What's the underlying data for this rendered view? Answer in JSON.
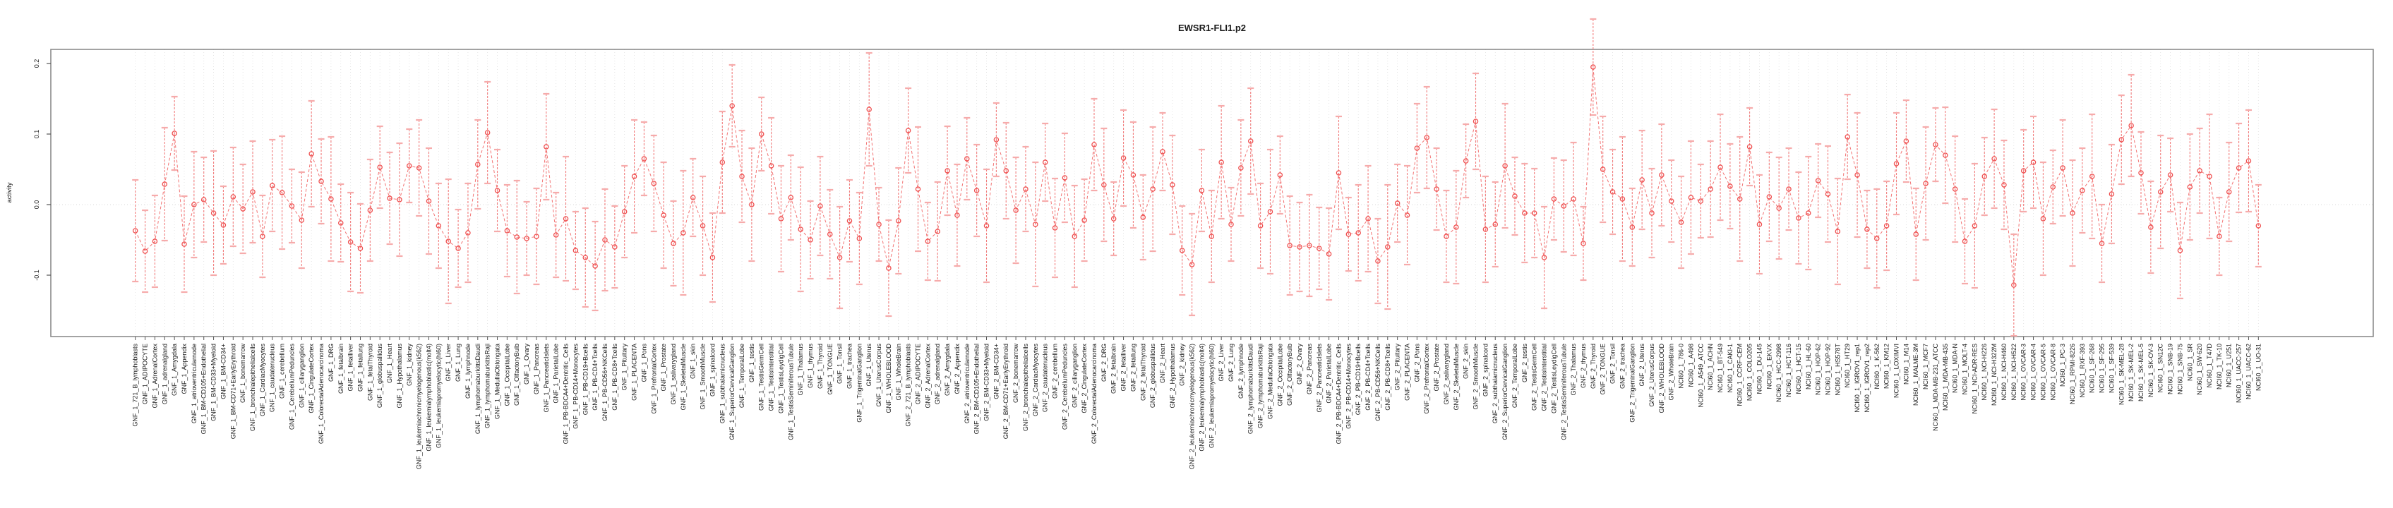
{
  "title": "EWSR1-FLI1.p2",
  "axes": {
    "ylabel": "activity",
    "ytick_labels": [
      "0.2",
      "0.1",
      "0.0",
      "-0.1"
    ],
    "ytick_values": [
      0.2,
      0.1,
      0.0,
      -0.1
    ]
  },
  "colors": {
    "marker": "#ef4e4e",
    "line": "#f27373",
    "errorbar": "#f27d7d",
    "errorbar_cap": "#f6abab",
    "frame": "#8c8c8c",
    "grid": "#dedede",
    "zero_line": "#cccccc",
    "tick": "#555555",
    "text": "#1a1a1a"
  },
  "chart_data": {
    "type": "line",
    "title": "EWSR1-FLI1.p2",
    "xlabel": "",
    "ylabel": "activity",
    "ylim": [
      -0.187,
      0.22
    ],
    "yticks": [
      -0.1,
      0.0,
      0.1,
      0.2
    ],
    "grid": "dotted vertical gridline per category; dotted horizontal line at y=0",
    "legend": "none",
    "marker": "open-circle",
    "error_bars": true,
    "categories": [
      "GNF_1_721_B_lymphoblasts",
      "GNF_1_ADIPOCYTE",
      "GNF_1_AdrenalCortex",
      "GNF_1_adrenalgland",
      "GNF_1_Amygdala",
      "GNF_1_Appendix",
      "GNF_1_atrioventricularnode",
      "GNF_1_BM-CD105+Endothelial",
      "GNF_1_BM-CD33+Myeloid",
      "GNF_1_BM-CD34+",
      "GNF_1_BM-CD71+EarlyErythroid",
      "GNF_1_bonemarrow",
      "GNF_1_bronchialepithelialcells",
      "GNF_1_CardiacMyocytes",
      "GNF_1_caudatenucleus",
      "GNF_1_cerebellum",
      "GNF_1_CerebellumPeduncles",
      "GNF_1_ciliaryganglion",
      "GNF_1_CingulateCortex",
      "GNF_1_ColorectalAdenocarcinoma",
      "GNF_1_DRG",
      "GNF_1_fetalbrain",
      "GNF_1_fetalliver",
      "GNF_1_fetallung",
      "GNF_1_fetalThyroid",
      "GNF_1_globuspallidus",
      "GNF_1_Heart",
      "GNF_1_Hypothalamus",
      "GNF_1_kidney",
      "GNF_1_leukemiachronicmyelogenous(k562)",
      "GNF_1_leukemialymphoblastic(molt4)",
      "GNF_1_leukemiapromyelocytic(hl60)",
      "GNF_1_Liver",
      "GNF_1_Lung",
      "GNF_1_lymphnode",
      "GNF_1_lymphomaburkittsDaudi",
      "GNF_1_lymphomaburkittsRaji",
      "GNF_1_MedullaOblongata",
      "GNF_1_OccipitalLobe",
      "GNF_1_OlfactoryBulb",
      "GNF_1_Ovary",
      "GNF_1_Pancreas",
      "GNF_1_PancreaticIslets",
      "GNF_1_ParietalLobe",
      "GNF_1_PB-BDCA4+Dentritic_Cells",
      "GNF_1_PB-CD14+Monocytes",
      "GNF_1_PB-CD19+Bcells",
      "GNF_1_PB-CD4+Tcells",
      "GNF_1_PB-CD56+NKCells",
      "GNF_1_PB-CD8+Tcells",
      "GNF_1_Pituitary",
      "GNF_1_PLACENTA",
      "GNF_1_Pons",
      "GNF_1_PrefrontalCortex",
      "GNF_1_Prostate",
      "GNF_1_salivarygland",
      "GNF_1_SkeletalMuscle",
      "GNF_1_skin",
      "GNF_1_SmoothMuscle",
      "GNF_1_spinalcord",
      "GNF_1_subthalamicnucleus",
      "GNF_1_SuperiorCervicalGanglion",
      "GNF_1_TemporalLobe",
      "GNF_1_testis",
      "GNF_1_TestisGermCell",
      "GNF_1_TestisInterstitial",
      "GNF_1_TestisLeydigCell",
      "GNF_1_TestisSeminiferousTubule",
      "GNF_1_Thalamus",
      "GNF_1_thymus",
      "GNF_1_Thyroid",
      "GNF_1_TONGUE",
      "GNF_1_Tonsil",
      "GNF_1_trachea",
      "GNF_1_TrigeminalGanglion",
      "GNF_1_Uterus",
      "GNF_1_UterusCorpus",
      "GNF_1_WHOLEBLOOD",
      "GNF_1_WholeBrain",
      "GNF_2_721_B_lymphoblasts",
      "GNF_2_ADIPOCYTE",
      "GNF_2_AdrenalCortex",
      "GNF_2_adrenalgland",
      "GNF_2_Amygdala",
      "GNF_2_Appendix",
      "GNF_2_atrioventricularnode",
      "GNF_2_BM-CD105+Endothelial",
      "GNF_2_BM-CD33+Myeloid",
      "GNF_2_BM-CD34+",
      "GNF_2_BM-CD71+EarlyErythroid",
      "GNF_2_bonemarrow",
      "GNF_2_bronchialepithelialcells",
      "GNF_2_CardiacMyocytes",
      "GNF_2_caudatenucleus",
      "GNF_2_cerebellum",
      "GNF_2_CerebellumPeduncles",
      "GNF_2_ciliaryganglion",
      "GNF_2_CingulateCortex",
      "GNF_2_ColorectalAdenocarcinoma",
      "GNF_2_DRG",
      "GNF_2_fetalbrain",
      "GNF_2_fetalliver",
      "GNF_2_fetallung",
      "GNF_2_fetalThyroid",
      "GNF_2_globuspallidus",
      "GNF_2_Heart",
      "GNF_2_Hypothalamus",
      "GNF_2_kidney",
      "GNF_2_leukemiachronicmyelogenous(k562)",
      "GNF_2_leukemialymphoblastic(molt4)",
      "GNF_2_leukemiapromyelocytic(hl60)",
      "GNF_2_Liver",
      "GNF_2_Lung",
      "GNF_2_lymphnode",
      "GNF_2_lymphomaburkittsDaudi",
      "GNF_2_lymphomaburkittsRaji",
      "GNF_2_MedullaOblongata",
      "GNF_2_OccipitalLobe",
      "GNF_2_OlfactoryBulb",
      "GNF_2_Ovary",
      "GNF_2_Pancreas",
      "GNF_2_PancreaticIslets",
      "GNF_2_ParietalLobe",
      "GNF_2_PB-BDCA4+Dentritic_Cells",
      "GNF_2_PB-CD14+Monocytes",
      "GNF_2_PB-CD19+Bcells",
      "GNF_2_PB-CD4+Tcells",
      "GNF_2_PB-CD56+NKCells",
      "GNF_2_PB-CD8+Tcells",
      "GNF_2_Pituitary",
      "GNF_2_PLACENTA",
      "GNF_2_Pons",
      "GNF_2_PrefrontalCortex",
      "GNF_2_Prostate",
      "GNF_2_salivarygland",
      "GNF_2_SkeletalMuscle",
      "GNF_2_skin",
      "GNF_2_SmoothMuscle",
      "GNF_2_spinalcord",
      "GNF_2_subthalamicnucleus",
      "GNF_2_SuperiorCervicalGanglion",
      "GNF_2_TemporalLobe",
      "GNF_2_testis",
      "GNF_2_TestisGermCell",
      "GNF_2_TestisInterstitial",
      "GNF_2_TestisLeydigCell",
      "GNF_2_TestisSeminiferousTubule",
      "GNF_2_Thalamus",
      "GNF_2_thymus",
      "GNF_2_Thyroid",
      "GNF_2_TONGUE",
      "GNF_2_Tonsil",
      "GNF_2_trachea",
      "GNF_2_TrigeminalGanglion",
      "GNF_2_Uterus",
      "GNF_2_UterusCorpus",
      "GNF_2_WHOLEBLOOD",
      "GNF_2_WholeBrain",
      "NCI60_1_786-0",
      "NCI60_1_A498",
      "NCI60_1_A549_ATCC",
      "NCI60_1_ACHN",
      "NCI60_1_BT-549",
      "NCI60_1_CAKI-1",
      "NCI60_1_CCRF-CEM",
      "NCI60_1_COLO205",
      "NCI60_1_DU-145",
      "NCI60_1_EKVX",
      "NCI60_1_HCC-2998",
      "NCI60_1_HCT-116",
      "NCI60_1_HCT-15",
      "NCI60_1_HL-60",
      "NCI60_1_HOP-62",
      "NCI60_1_HOP-92",
      "NCI60_1_HS578T",
      "NCI60_1_HT29",
      "NCI60_1_IGROV1_rep1",
      "NCI60_1_IGROV1_rep2",
      "NCI60_1_K-562",
      "NCI60_1_KM12",
      "NCI60_1_LOXIMVI",
      "NCI60_1_M14",
      "NCI60_1_MALME-3M",
      "NCI60_1_MCF7",
      "NCI60_1_MDA-MB-231_ATCC",
      "NCI60_1_MDA-MB-435",
      "NCI60_1_MDA-N",
      "NCI60_1_MOLT-4",
      "NCI60_1_NCI-ADR-RES",
      "NCI60_1_NCI-H226",
      "NCI60_1_NCI-H322M",
      "NCI60_1_NCI-H460",
      "NCI60_1_NCI-H522",
      "NCI60_1_OVCAR-3",
      "NCI60_1_OVCAR-4",
      "NCI60_1_OVCAR-5",
      "NCI60_1_OVCAR-8",
      "NCI60_1_PC-3",
      "NCI60_1_RPMI-8226",
      "NCI60_1_RXF-393",
      "NCI60_1_SF-268",
      "NCI60_1_SF-295",
      "NCI60_1_SF-539",
      "NCI60_1_SK-MEL-28",
      "NCI60_1_SK-MEL-2",
      "NCI60_1_SK-MEL-5",
      "NCI60_1_SK-OV-3",
      "NCI60_1_SN12C",
      "NCI60_1_SNB-19",
      "NCI60_1_SNB-75",
      "NCI60_1_SR",
      "NCI60_1_SW-620",
      "NCI60_1_T47D",
      "NCI60_1_TK-10",
      "NCI60_1_U251",
      "NCI60_1_UACC-257",
      "NCI60_1_UACC-62",
      "NCI60_1_UO-31"
    ],
    "values": [
      -0.037,
      -0.066,
      -0.052,
      0.029,
      0.101,
      -0.056,
      0.0,
      0.007,
      -0.012,
      -0.029,
      0.011,
      -0.006,
      0.018,
      -0.045,
      0.027,
      0.017,
      -0.002,
      -0.022,
      0.072,
      0.033,
      0.008,
      -0.026,
      -0.053,
      -0.062,
      -0.008,
      0.053,
      0.009,
      0.007,
      0.055,
      0.052,
      0.005,
      -0.03,
      -0.052,
      -0.062,
      -0.04,
      0.057,
      0.102,
      0.02,
      -0.037,
      -0.046,
      -0.048,
      -0.045,
      0.082,
      -0.043,
      -0.02,
      -0.065,
      -0.075,
      -0.087,
      -0.05,
      -0.06,
      -0.01,
      0.04,
      0.065,
      0.03,
      -0.015,
      -0.055,
      -0.04,
      0.01,
      -0.03,
      -0.075,
      0.06,
      0.14,
      0.04,
      0.0,
      0.1,
      0.055,
      -0.02,
      0.01,
      -0.035,
      -0.05,
      -0.002,
      -0.042,
      -0.075,
      -0.023,
      -0.048,
      0.135,
      -0.028,
      -0.09,
      -0.023,
      0.105,
      0.022,
      -0.052,
      -0.038,
      0.048,
      -0.015,
      0.065,
      0.02,
      -0.03,
      0.092,
      0.048,
      -0.008,
      0.022,
      -0.028,
      0.06,
      -0.033,
      0.038,
      -0.045,
      -0.022,
      0.085,
      0.028,
      -0.02,
      0.066,
      0.042,
      -0.018,
      0.022,
      0.075,
      0.028,
      -0.065,
      -0.085,
      0.02,
      -0.045,
      0.06,
      -0.028,
      0.052,
      0.09,
      -0.03,
      -0.01,
      0.042,
      -0.058,
      -0.06,
      -0.058,
      -0.062,
      -0.07,
      0.045,
      -0.042,
      -0.04,
      -0.02,
      -0.08,
      -0.06,
      0.002,
      -0.015,
      0.08,
      0.095,
      0.022,
      -0.045,
      -0.032,
      0.062,
      0.118,
      -0.035,
      -0.028,
      0.055,
      0.012,
      -0.012,
      -0.012,
      -0.075,
      0.008,
      -0.002,
      0.008,
      -0.055,
      0.195,
      0.05,
      0.018,
      0.008,
      -0.032,
      0.035,
      -0.012,
      0.042,
      0.005,
      -0.025,
      0.01,
      0.005,
      0.022,
      0.053,
      0.026,
      0.008,
      0.082,
      -0.028,
      0.011,
      -0.005,
      0.022,
      -0.019,
      -0.012,
      0.034,
      0.015,
      -0.038,
      0.096,
      0.042,
      -0.035,
      -0.048,
      -0.03,
      0.058,
      0.09,
      -0.042,
      0.03,
      0.085,
      0.07,
      0.022,
      -0.052,
      -0.03,
      0.04,
      0.065,
      0.028,
      -0.114,
      0.048,
      0.06,
      -0.02,
      0.025,
      0.052,
      -0.012,
      0.02,
      0.04,
      -0.055,
      0.015,
      0.092,
      0.112,
      0.045,
      -0.032,
      0.018,
      0.042,
      -0.065,
      0.025,
      0.048,
      0.04,
      -0.045,
      0.018,
      0.052,
      0.062,
      -0.03
    ],
    "errors": [
      0.072,
      0.058,
      0.065,
      0.08,
      0.052,
      0.068,
      0.075,
      0.06,
      0.088,
      0.055,
      0.07,
      0.063,
      0.072,
      0.058,
      0.065,
      0.08,
      0.052,
      0.068,
      0.075,
      0.06,
      0.088,
      0.055,
      0.07,
      0.063,
      0.072,
      0.058,
      0.065,
      0.08,
      0.052,
      0.068,
      0.075,
      0.06,
      0.088,
      0.055,
      0.07,
      0.063,
      0.072,
      0.058,
      0.065,
      0.08,
      0.052,
      0.068,
      0.075,
      0.06,
      0.088,
      0.055,
      0.07,
      0.063,
      0.072,
      0.058,
      0.065,
      0.08,
      0.052,
      0.068,
      0.075,
      0.06,
      0.088,
      0.055,
      0.07,
      0.063,
      0.072,
      0.058,
      0.065,
      0.08,
      0.052,
      0.068,
      0.075,
      0.06,
      0.088,
      0.055,
      0.07,
      0.063,
      0.072,
      0.058,
      0.065,
      0.08,
      0.052,
      0.068,
      0.075,
      0.06,
      0.088,
      0.055,
      0.07,
      0.063,
      0.072,
      0.058,
      0.065,
      0.08,
      0.052,
      0.068,
      0.075,
      0.06,
      0.088,
      0.055,
      0.07,
      0.063,
      0.072,
      0.058,
      0.065,
      0.08,
      0.052,
      0.068,
      0.075,
      0.06,
      0.088,
      0.055,
      0.07,
      0.063,
      0.072,
      0.058,
      0.065,
      0.08,
      0.052,
      0.068,
      0.075,
      0.06,
      0.088,
      0.055,
      0.07,
      0.063,
      0.072,
      0.058,
      0.065,
      0.08,
      0.052,
      0.068,
      0.075,
      0.06,
      0.088,
      0.055,
      0.07,
      0.063,
      0.072,
      0.058,
      0.065,
      0.08,
      0.052,
      0.068,
      0.075,
      0.06,
      0.088,
      0.055,
      0.07,
      0.063,
      0.072,
      0.058,
      0.065,
      0.08,
      0.052,
      0.068,
      0.075,
      0.06,
      0.088,
      0.055,
      0.07,
      0.063,
      0.072,
      0.058,
      0.065,
      0.08,
      0.052,
      0.068,
      0.075,
      0.06,
      0.088,
      0.055,
      0.07,
      0.063,
      0.072,
      0.058,
      0.065,
      0.08,
      0.052,
      0.068,
      0.075,
      0.06,
      0.088,
      0.055,
      0.07,
      0.063,
      0.072,
      0.058,
      0.065,
      0.08,
      0.052,
      0.068,
      0.075,
      0.06,
      0.088,
      0.055,
      0.07,
      0.063,
      0.072,
      0.058,
      0.065,
      0.08,
      0.052,
      0.068,
      0.075,
      0.06,
      0.088,
      0.055,
      0.07,
      0.063,
      0.072,
      0.058,
      0.065,
      0.08,
      0.052,
      0.068,
      0.075,
      0.06,
      0.088,
      0.055,
      0.07,
      0.063,
      0.072,
      0.058
    ]
  }
}
